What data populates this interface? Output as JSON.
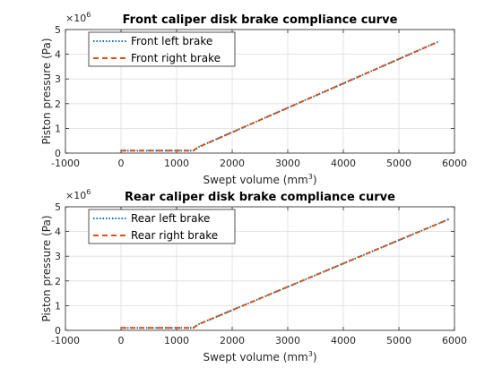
{
  "chart_data": [
    {
      "type": "line",
      "title": "Front caliper disk brake compliance curve",
      "xlabel": "Swept volume (mm",
      "xlabel_sup": "3",
      "xlabel_end": ")",
      "ylabel": "Piston pressure (Pa)",
      "exponent_base": "×10",
      "exponent_power": "6",
      "xlim": [
        -1000,
        6000
      ],
      "ylim": [
        0,
        5
      ],
      "xticks": [
        -1000,
        0,
        1000,
        2000,
        3000,
        4000,
        5000,
        6000
      ],
      "yticks": [
        0,
        1,
        2,
        3,
        4,
        5
      ],
      "grid": true,
      "legend_position": "top-left",
      "series": [
        {
          "name": "Front left brake",
          "style": "dotted",
          "color": "#0072BD",
          "x": [
            0,
            1300,
            1400,
            5700
          ],
          "y": [
            0.1,
            0.1,
            0.25,
            4.5
          ]
        },
        {
          "name": "Front right brake",
          "style": "dashed",
          "color": "#D95319",
          "x": [
            0,
            1300,
            1400,
            5700
          ],
          "y": [
            0.1,
            0.1,
            0.25,
            4.5
          ]
        }
      ]
    },
    {
      "type": "line",
      "title": "Rear caliper disk brake compliance curve",
      "xlabel": "Swept volume (mm",
      "xlabel_sup": "3",
      "xlabel_end": ")",
      "ylabel": "Piston pressure (Pa)",
      "exponent_base": "×10",
      "exponent_power": "6",
      "xlim": [
        -1000,
        6000
      ],
      "ylim": [
        0,
        5
      ],
      "xticks": [
        -1000,
        0,
        1000,
        2000,
        3000,
        4000,
        5000,
        6000
      ],
      "yticks": [
        0,
        1,
        2,
        3,
        4,
        5
      ],
      "grid": true,
      "legend_position": "top-left",
      "series": [
        {
          "name": "Rear left brake",
          "style": "dotted",
          "color": "#0072BD",
          "x": [
            0,
            1300,
            1400,
            5900
          ],
          "y": [
            0.1,
            0.1,
            0.25,
            4.5
          ]
        },
        {
          "name": "Rear right brake",
          "style": "dashed",
          "color": "#D95319",
          "x": [
            0,
            1300,
            1400,
            5900
          ],
          "y": [
            0.1,
            0.1,
            0.25,
            4.5
          ]
        }
      ]
    }
  ]
}
